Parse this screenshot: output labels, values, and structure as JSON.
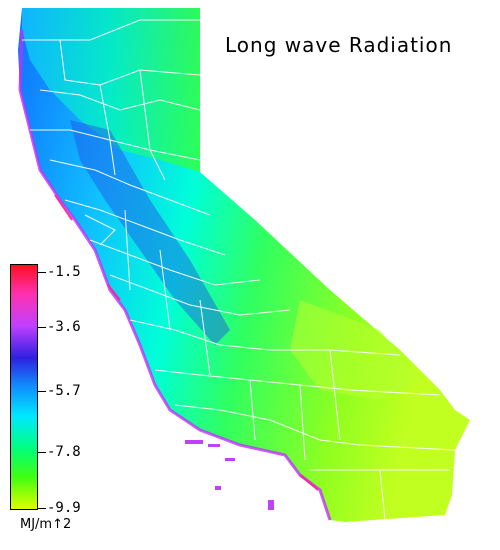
{
  "title": "Long wave Radiation",
  "legend": {
    "ticks": [
      "-1.5",
      "-3.6",
      "-5.7",
      "-7.8",
      "-9.9"
    ],
    "unit": "MJ/m↑2"
  },
  "colors": {
    "high": "#ff1020",
    "magenta": "#ff30b0",
    "purple": "#c040ff",
    "blue": "#3020e0",
    "sky": "#1090ff",
    "cyan": "#00e8ff",
    "green": "#40ff10",
    "low": "#e0ff00",
    "boundaries": "#ffffff"
  }
}
